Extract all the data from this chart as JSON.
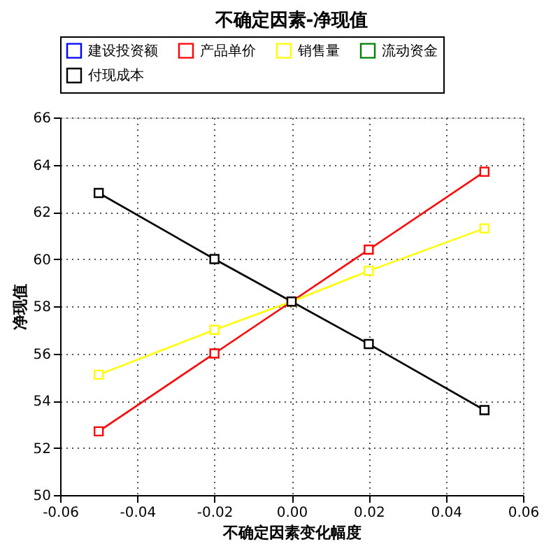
{
  "chart_data": {
    "type": "line",
    "title": "不确定因素-净现值",
    "xlabel": "不确定因素变化幅度",
    "ylabel": "净现值",
    "x": [
      -0.05,
      -0.02,
      0,
      0.02,
      0.05
    ],
    "series": [
      {
        "name": "建设投资额",
        "color": "#0000ff",
        "values": [
          null,
          null,
          null,
          null,
          null
        ]
      },
      {
        "name": "产品单价",
        "color": "#ff0000",
        "values": [
          52.7,
          56.0,
          58.2,
          60.4,
          63.7
        ]
      },
      {
        "name": "销售量",
        "color": "#ffff00",
        "values": [
          55.1,
          57.0,
          58.2,
          59.5,
          61.3
        ]
      },
      {
        "name": "流动资金",
        "color": "#008000",
        "values": [
          null,
          null,
          null,
          null,
          null
        ]
      },
      {
        "name": "付现成本",
        "color": "#000000",
        "values": [
          62.8,
          60.0,
          58.2,
          56.4,
          53.6
        ]
      }
    ],
    "xlim": [
      -0.06,
      0.06
    ],
    "xticks": [
      {
        "value": -0.06,
        "label": "-0.06"
      },
      {
        "value": -0.04,
        "label": "-0.04"
      },
      {
        "value": -0.02,
        "label": "-0.02"
      },
      {
        "value": 0,
        "label": "0.00"
      },
      {
        "value": 0.02,
        "label": "0.02"
      },
      {
        "value": 0.04,
        "label": "0.04"
      },
      {
        "value": 0.06,
        "label": "0.06"
      }
    ],
    "ylim": [
      50,
      66
    ],
    "yticks": [
      50,
      52,
      54,
      56,
      58,
      60,
      62,
      64,
      66
    ],
    "grid": true,
    "legend": "top",
    "marker": "square",
    "line_style": "solid"
  }
}
